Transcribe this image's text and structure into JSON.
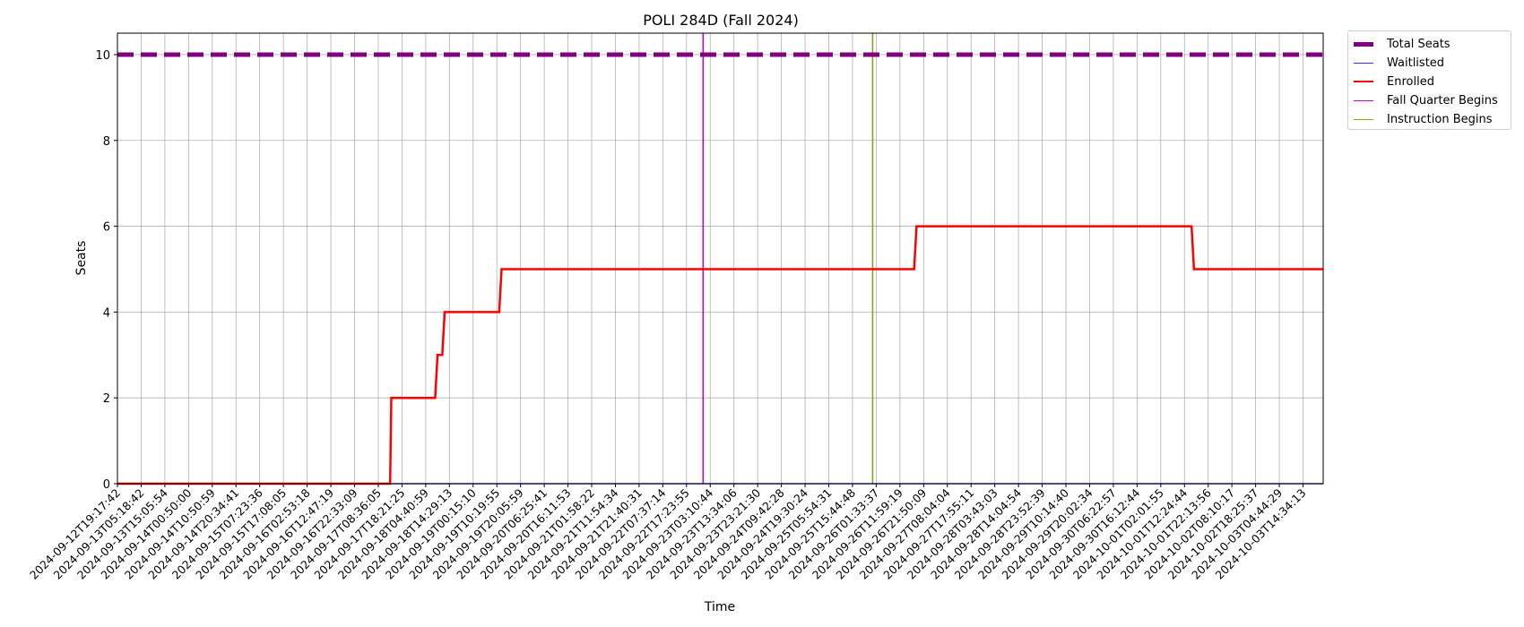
{
  "chart_data": {
    "type": "line",
    "title": "POLI 284D (Fall 2024)",
    "xlabel": "Time",
    "ylabel": "Seats",
    "ylim": [
      0,
      10.5
    ],
    "yticks": [
      0,
      2,
      4,
      6,
      8,
      10
    ],
    "grid": true,
    "legend_position": "outside-top-right",
    "x_tick_labels": [
      "2024-09-12T19:17:42",
      "2024-09-13T05:18:42",
      "2024-09-13T15:05:54",
      "2024-09-14T00:50:00",
      "2024-09-14T10:50:59",
      "2024-09-14T20:34:41",
      "2024-09-15T07:23:36",
      "2024-09-15T17:08:05",
      "2024-09-16T02:53:18",
      "2024-09-16T12:47:19",
      "2024-09-16T22:33:09",
      "2024-09-17T08:36:05",
      "2024-09-17T18:21:25",
      "2024-09-18T04:40:59",
      "2024-09-18T14:29:13",
      "2024-09-19T00:15:10",
      "2024-09-19T10:19:55",
      "2024-09-19T20:05:59",
      "2024-09-20T06:25:41",
      "2024-09-20T16:11:53",
      "2024-09-21T01:58:22",
      "2024-09-21T11:54:34",
      "2024-09-21T21:40:31",
      "2024-09-22T07:37:14",
      "2024-09-22T17:23:55",
      "2024-09-23T03:10:44",
      "2024-09-23T13:34:06",
      "2024-09-23T23:21:30",
      "2024-09-24T09:42:28",
      "2024-09-24T19:30:24",
      "2024-09-25T05:54:31",
      "2024-09-25T15:44:48",
      "2024-09-26T01:33:37",
      "2024-09-26T11:59:19",
      "2024-09-26T21:50:09",
      "2024-09-27T08:04:04",
      "2024-09-27T17:55:11",
      "2024-09-28T03:43:03",
      "2024-09-28T14:04:54",
      "2024-09-28T23:52:39",
      "2024-09-29T10:14:40",
      "2024-09-29T20:02:34",
      "2024-09-30T06:22:57",
      "2024-09-30T16:12:44",
      "2024-10-01T02:01:55",
      "2024-10-01T12:24:44",
      "2024-10-01T22:13:56",
      "2024-10-02T08:10:17",
      "2024-10-02T18:25:37",
      "2024-10-03T04:44:29",
      "2024-10-03T14:34:13"
    ],
    "x_range_index": [
      0,
      50.85
    ],
    "series": [
      {
        "name": "Total Seats",
        "color": "#800080",
        "style": "dashed",
        "points": [
          [
            0,
            10
          ],
          [
            50.85,
            10
          ]
        ]
      },
      {
        "name": "Waitlisted",
        "color": "#3333ff",
        "style": "solid",
        "points": [
          [
            0,
            0
          ],
          [
            50.85,
            0
          ]
        ]
      },
      {
        "name": "Enrolled",
        "color": "#ff0000",
        "style": "solid",
        "points": [
          [
            0,
            0
          ],
          [
            11.5,
            0
          ],
          [
            11.55,
            2
          ],
          [
            13.4,
            2
          ],
          [
            13.5,
            3
          ],
          [
            13.7,
            3
          ],
          [
            13.8,
            4
          ],
          [
            16.1,
            4
          ],
          [
            16.2,
            5
          ],
          [
            33.6,
            5
          ],
          [
            33.7,
            6
          ],
          [
            45.3,
            6
          ],
          [
            45.4,
            5
          ],
          [
            50.85,
            5
          ]
        ]
      }
    ],
    "markers": [
      {
        "name": "Fall Quarter Begins",
        "color": "#cc00cc",
        "x_index": 24.7
      },
      {
        "name": "Instruction Begins",
        "color": "#7fa81a",
        "x_index": 31.85
      }
    ]
  }
}
